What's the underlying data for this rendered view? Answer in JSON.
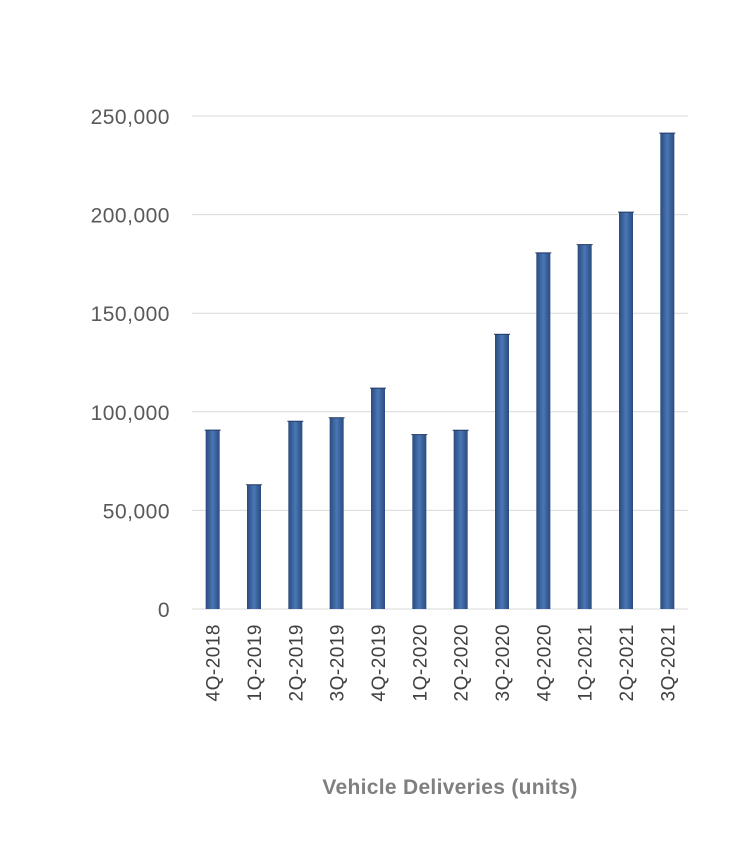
{
  "chart_data": {
    "type": "bar",
    "title": "Vehicle Deliveries (units)",
    "xlabel": "",
    "ylabel": "",
    "categories": [
      "4Q-2018",
      "1Q-2019",
      "2Q-2019",
      "3Q-2019",
      "4Q-2019",
      "1Q-2020",
      "2Q-2020",
      "3Q-2020",
      "4Q-2020",
      "1Q-2021",
      "2Q-2021",
      "3Q-2021"
    ],
    "values": [
      90700,
      63000,
      95200,
      97000,
      112000,
      88400,
      90650,
      139300,
      180570,
      184800,
      201250,
      241300
    ],
    "ylim": [
      0,
      250000
    ],
    "yticks": [
      0,
      50000,
      100000,
      150000,
      200000,
      250000
    ],
    "ytick_labels": [
      "0",
      "50,000",
      "100,000",
      "150,000",
      "200,000",
      "250,000"
    ],
    "grid": true,
    "legend": "none",
    "colors": {
      "bar_edge": "#2f5289",
      "bar_center": "#4a77b4",
      "bar_dark": "#2a4a7f",
      "grid": "#d9d9d9",
      "tick_text": "#595959",
      "title_text": "#7f7f7f"
    }
  }
}
